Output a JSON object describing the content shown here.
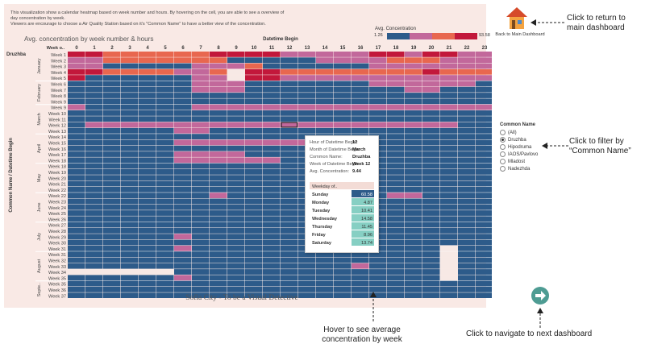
{
  "intro": {
    "line1": "This visualization show a calendar heatmap based on week number and hours. By hovering on the cell, you are able to see a overview of",
    "line2": "day concentration by week.",
    "line3": "Viewers are encourage to choose a Air Quality Station based on it's \"Common Name\" to have a better view of the concentration."
  },
  "chart": {
    "title": "Avg. concentration by week number & hours",
    "col_header": "Datetime Begin",
    "week_header": "Week o..",
    "y_axis_title": "Common Name / Datetime Begin",
    "station": "Druzhba",
    "hours": [
      "0",
      "1",
      "2",
      "3",
      "4",
      "5",
      "6",
      "7",
      "8",
      "9",
      "10",
      "11",
      "12",
      "13",
      "14",
      "15",
      "16",
      "17",
      "18",
      "19",
      "20",
      "21",
      "22",
      "23"
    ],
    "months": [
      {
        "name": "January",
        "weeks": [
          "Week 1",
          "Week 2",
          "Week 3",
          "Week 4",
          "Week 5"
        ]
      },
      {
        "name": "February",
        "weeks": [
          "Week 6",
          "Week 7",
          "Week 8",
          "Week 9"
        ]
      },
      {
        "name": "March",
        "weeks": [
          "Week 9",
          "Week 10",
          "Week 11",
          "Week 12",
          "Week 13"
        ]
      },
      {
        "name": "April",
        "weeks": [
          "Week 14",
          "Week 15",
          "Week 16",
          "Week 17",
          "Week 18"
        ]
      },
      {
        "name": "May",
        "weeks": [
          "Week 18",
          "Week 19",
          "Week 20",
          "Week 21",
          "Week 22"
        ]
      },
      {
        "name": "June",
        "weeks": [
          "Week 22",
          "Week 23",
          "Week 24",
          "Week 25",
          "Week 26"
        ]
      },
      {
        "name": "July",
        "weeks": [
          "Week 27",
          "Week 28",
          "Week 29",
          "Week 30",
          "Week 31"
        ]
      },
      {
        "name": "August",
        "weeks": [
          "Week 31",
          "Week 32",
          "Week 33",
          "Week 34",
          "Week 35"
        ]
      },
      {
        "name": "Septe..",
        "weeks": [
          "Week 35",
          "Week 36",
          "Week 37"
        ]
      }
    ]
  },
  "legend": {
    "title": "Avg. Concentration",
    "min": "1.26",
    "max": "93.58"
  },
  "footer": {
    "title": "Sofia City - To be a Visual Detective"
  },
  "home": {
    "label": "Back to Main Dashboard"
  },
  "annotations": {
    "return_line1": "Click to return to",
    "return_line2": "main dashboard",
    "filter_line1": "Click to filter by",
    "filter_line2": "“Common Name”",
    "hover_line1": "Hover to see average",
    "hover_line2": "concentration by week",
    "next": "Click to navigate to next dashboard"
  },
  "filter": {
    "title": "Common Name",
    "options": [
      {
        "label": "(All)",
        "selected": false
      },
      {
        "label": "Druzhba",
        "selected": true
      },
      {
        "label": "Hipodruma",
        "selected": false
      },
      {
        "label": "IAOS/Pavlovo",
        "selected": false
      },
      {
        "label": "Mladost",
        "selected": false
      },
      {
        "label": "Nadezhda",
        "selected": false
      }
    ]
  },
  "tooltip": {
    "fields": [
      {
        "label": "Hour of Datetime Begin:",
        "value": "12"
      },
      {
        "label": "Month of Datetime Begin:",
        "value": "March"
      },
      {
        "label": "Common Name:",
        "value": "Druzhba"
      },
      {
        "label": "Week of Datetime Begin:",
        "value": "Week 12"
      },
      {
        "label": "Avg. Concentration:",
        "value": "9.44"
      }
    ],
    "table_header": "Weekday of..",
    "weekdays": [
      {
        "day": "Sunday",
        "value": "60.58",
        "v": 60.58
      },
      {
        "day": "Monday",
        "value": "4.87",
        "v": 4.87
      },
      {
        "day": "Tuesday",
        "value": "10.41",
        "v": 10.41
      },
      {
        "day": "Wednesday",
        "value": "14.58",
        "v": 14.58
      },
      {
        "day": "Thursday",
        "value": "11.45",
        "v": 11.45
      },
      {
        "day": "Friday",
        "value": "8.96",
        "v": 8.96
      },
      {
        "day": "Saturday",
        "value": "13.74",
        "v": 13.74
      }
    ]
  },
  "colors": {
    "low": "#2d5b8a",
    "mid": "#c2689b",
    "midhigh": "#e8674f",
    "high": "#c2183b",
    "empty": "#f7e9e5",
    "accent": "#4e9c93"
  }
}
